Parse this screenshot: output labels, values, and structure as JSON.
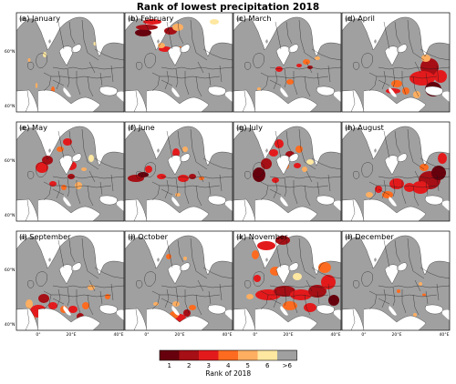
{
  "title": "Rank of lowest precipitation 2018",
  "panels": [
    {
      "label": "(a) January"
    },
    {
      "label": "(b) February"
    },
    {
      "label": "(c) March"
    },
    {
      "label": "(d) April"
    },
    {
      "label": "(e) May"
    },
    {
      "label": "(f) June"
    },
    {
      "label": "(g) July"
    },
    {
      "label": "(h) August"
    },
    {
      "label": "(i) September"
    },
    {
      "label": "(j) October"
    },
    {
      "label": "(k) November"
    },
    {
      "label": "(l) December"
    }
  ],
  "axes": {
    "lat_ticks": [
      "60°N",
      "40°N"
    ],
    "lon_ticks": [
      "0°",
      "20°E",
      "40°E"
    ]
  },
  "colorbar": {
    "label": "Rank of 2018",
    "ticks": [
      "1",
      "2",
      "3",
      "4",
      "5",
      "6",
      ">6"
    ],
    "colors": [
      "#67000d",
      "#a50f15",
      "#e31a1c",
      "#fc6b1f",
      "#fdae61",
      "#fee7a0",
      "#a0a0a0"
    ]
  },
  "colors": {
    "sea": "#ffffff",
    "land": "#a0a0a0",
    "border": "#1a1a1a"
  },
  "chart_data": {
    "type": "heatmap",
    "title": "Rank of lowest precipitation 2018",
    "colorbar_label": "Rank of 2018",
    "categories": [
      "1",
      "2",
      "3",
      "4",
      "5",
      "6",
      ">6"
    ],
    "panels": [
      "(a) January",
      "(b) February",
      "(c) March",
      "(d) April",
      "(e) May",
      "(f) June",
      "(g) July",
      "(h) August",
      "(i) September",
      "(j) October",
      "(k) November",
      "(l) December"
    ],
    "x_ticks": [
      "0°",
      "20°E",
      "40°E"
    ],
    "y_ticks": [
      "60°N",
      "40°N"
    ]
  }
}
